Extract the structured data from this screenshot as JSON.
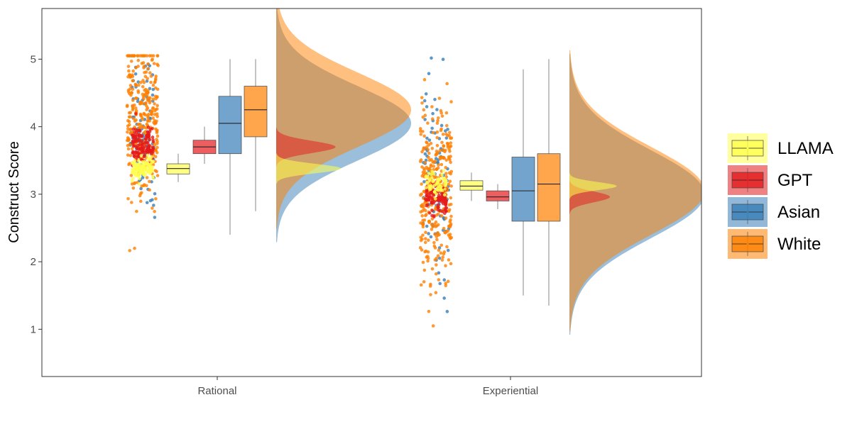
{
  "chart_data": {
    "type": "raincloud",
    "title": "",
    "xlabel": "",
    "ylabel": "Construct Score",
    "ylim": [
      0.3,
      5.75
    ],
    "yticks": [
      1,
      2,
      3,
      4,
      5
    ],
    "categories": [
      "Rational",
      "Experiential"
    ],
    "grid": false,
    "legend_position": "right",
    "series": [
      {
        "name": "LLAMA",
        "color": "#FFFF4D",
        "box": [
          {
            "min": 3.18,
            "q1": 3.3,
            "median": 3.38,
            "q3": 3.45,
            "max": 3.6
          },
          {
            "min": 2.9,
            "q1": 3.06,
            "median": 3.12,
            "q3": 3.2,
            "max": 3.32
          }
        ],
        "density": [
          {
            "mean": 3.38,
            "sd": 0.07,
            "peak_scale": 0.48
          },
          {
            "mean": 3.12,
            "sd": 0.06,
            "peak_scale": 0.35
          }
        ],
        "points": [
          {
            "n": 120,
            "mean": 3.38,
            "sd": 0.08
          },
          {
            "n": 60,
            "mean": 3.15,
            "sd": 0.09
          }
        ]
      },
      {
        "name": "GPT",
        "color": "#E41A1C",
        "box": [
          {
            "min": 3.45,
            "q1": 3.6,
            "median": 3.7,
            "q3": 3.8,
            "max": 4.0
          },
          {
            "min": 2.78,
            "q1": 2.9,
            "median": 2.96,
            "q3": 3.05,
            "max": 3.15
          }
        ],
        "density": [
          {
            "mean": 3.7,
            "sd": 0.09,
            "peak_scale": 0.44
          },
          {
            "mean": 2.96,
            "sd": 0.08,
            "peak_scale": 0.3
          }
        ],
        "points": [
          {
            "n": 140,
            "mean": 3.7,
            "sd": 0.15
          },
          {
            "n": 110,
            "mean": 2.95,
            "sd": 0.12
          }
        ]
      },
      {
        "name": "Asian",
        "color": "#377EB8",
        "box": [
          {
            "min": 2.4,
            "q1": 3.6,
            "median": 4.05,
            "q3": 4.45,
            "max": 5.0
          },
          {
            "min": 1.5,
            "q1": 2.6,
            "median": 3.05,
            "q3": 3.55,
            "max": 4.85
          }
        ],
        "density": [
          {
            "mean": 4.05,
            "sd": 0.55,
            "peak_scale": 1.0
          },
          {
            "mean": 3.0,
            "sd": 0.65,
            "peak_scale": 1.0
          }
        ],
        "points": [
          {
            "n": 90,
            "mean": 3.95,
            "sd": 0.65
          },
          {
            "n": 90,
            "mean": 3.0,
            "sd": 0.75
          }
        ]
      },
      {
        "name": "White",
        "color": "#FF7F00",
        "box": [
          {
            "min": 2.75,
            "q1": 3.85,
            "median": 4.25,
            "q3": 4.6,
            "max": 5.0
          },
          {
            "min": 1.35,
            "q1": 2.6,
            "median": 3.15,
            "q3": 3.6,
            "max": 5.0
          }
        ],
        "density": [
          {
            "mean": 4.25,
            "sd": 0.55,
            "peak_scale": 1.0
          },
          {
            "mean": 3.05,
            "sd": 0.65,
            "peak_scale": 1.0
          }
        ],
        "points": [
          {
            "n": 320,
            "mean": 4.2,
            "sd": 0.6
          },
          {
            "n": 320,
            "mean": 3.0,
            "sd": 0.7
          }
        ]
      }
    ]
  }
}
